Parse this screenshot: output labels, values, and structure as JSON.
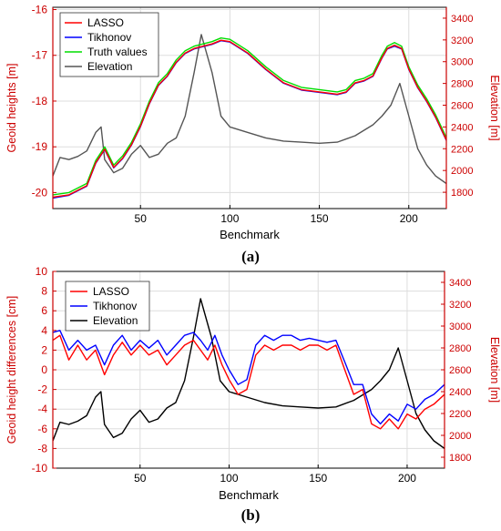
{
  "captions": [
    "(a)",
    "(b)"
  ],
  "colors": {
    "lasso": "#ff0000",
    "tikhonov": "#0000ff",
    "truth": "#00dd00",
    "elevation_a": "#555555",
    "elevation_b": "#000000",
    "axis_red": "#cc0000"
  },
  "chart_data": [
    {
      "type": "line",
      "xlabel": "Benchmark",
      "ylabel": "Geoid heights [m]",
      "y2label": "Elevation [m]",
      "xlim": [
        1,
        221
      ],
      "ylim": [
        -20.35,
        -15.95
      ],
      "y2lim": [
        1650,
        3500
      ],
      "xticks": [
        50,
        100,
        150,
        200
      ],
      "yticks": [
        -20,
        -19,
        -18,
        -17,
        -16
      ],
      "y2ticks": [
        1800,
        2000,
        2200,
        2400,
        2600,
        2800,
        3000,
        3200,
        3400
      ],
      "grid": true,
      "legend_position": "top-left",
      "legend": [
        "LASSO",
        "Tikhonov",
        "Truth values",
        "Elevation"
      ],
      "series": [
        {
          "name": "LASSO",
          "axis": "left",
          "color": "#ff0000",
          "x": [
            1,
            10,
            20,
            25,
            30,
            35,
            40,
            45,
            50,
            55,
            60,
            65,
            70,
            75,
            80,
            85,
            90,
            95,
            100,
            110,
            120,
            130,
            140,
            150,
            160,
            165,
            170,
            175,
            180,
            185,
            188,
            192,
            196,
            200,
            205,
            210,
            215,
            221
          ],
          "y": [
            -20.1,
            -20.05,
            -19.85,
            -19.35,
            -19.05,
            -19.45,
            -19.25,
            -18.95,
            -18.55,
            -18.05,
            -17.65,
            -17.45,
            -17.15,
            -16.95,
            -16.85,
            -16.8,
            -16.75,
            -16.67,
            -16.7,
            -16.95,
            -17.3,
            -17.6,
            -17.75,
            -17.8,
            -17.85,
            -17.8,
            -17.6,
            -17.55,
            -17.45,
            -17.05,
            -16.85,
            -16.78,
            -16.85,
            -17.3,
            -17.7,
            -18.0,
            -18.35,
            -18.85
          ]
        },
        {
          "name": "Tikhonov",
          "axis": "left",
          "color": "#0000ff",
          "x": [
            1,
            10,
            20,
            25,
            30,
            35,
            40,
            45,
            50,
            55,
            60,
            65,
            70,
            75,
            80,
            85,
            90,
            95,
            100,
            110,
            120,
            130,
            140,
            150,
            160,
            165,
            170,
            175,
            180,
            185,
            188,
            192,
            196,
            200,
            205,
            210,
            215,
            221
          ],
          "y": [
            -20.12,
            -20.06,
            -19.86,
            -19.36,
            -19.06,
            -19.46,
            -19.26,
            -18.96,
            -18.56,
            -18.06,
            -17.66,
            -17.46,
            -17.16,
            -16.96,
            -16.86,
            -16.81,
            -16.76,
            -16.68,
            -16.71,
            -16.96,
            -17.31,
            -17.61,
            -17.76,
            -17.81,
            -17.86,
            -17.81,
            -17.61,
            -17.56,
            -17.46,
            -17.06,
            -16.86,
            -16.8,
            -16.86,
            -17.31,
            -17.71,
            -18.01,
            -18.36,
            -18.86
          ]
        },
        {
          "name": "Truth values",
          "axis": "left",
          "color": "#00dd00",
          "x": [
            1,
            10,
            20,
            25,
            30,
            35,
            40,
            45,
            50,
            55,
            60,
            65,
            70,
            75,
            80,
            85,
            90,
            95,
            100,
            110,
            120,
            130,
            140,
            150,
            160,
            165,
            170,
            175,
            180,
            185,
            188,
            192,
            196,
            200,
            205,
            210,
            215,
            221
          ],
          "y": [
            -20.05,
            -20.0,
            -19.8,
            -19.3,
            -19.0,
            -19.4,
            -19.2,
            -18.9,
            -18.5,
            -18.0,
            -17.6,
            -17.4,
            -17.1,
            -16.9,
            -16.8,
            -16.75,
            -16.7,
            -16.62,
            -16.65,
            -16.9,
            -17.25,
            -17.55,
            -17.7,
            -17.75,
            -17.8,
            -17.75,
            -17.55,
            -17.5,
            -17.4,
            -17.0,
            -16.8,
            -16.72,
            -16.8,
            -17.25,
            -17.65,
            -17.95,
            -18.3,
            -18.8
          ]
        },
        {
          "name": "Elevation",
          "axis": "right",
          "color": "#555555",
          "x": [
            1,
            5,
            10,
            15,
            20,
            25,
            28,
            30,
            35,
            40,
            45,
            50,
            55,
            60,
            65,
            70,
            75,
            80,
            84,
            90,
            95,
            100,
            110,
            120,
            130,
            140,
            150,
            160,
            170,
            180,
            185,
            190,
            195,
            200,
            205,
            210,
            215,
            221
          ],
          "y": [
            1950,
            2120,
            2100,
            2130,
            2180,
            2350,
            2400,
            2100,
            1980,
            2020,
            2150,
            2230,
            2120,
            2150,
            2250,
            2300,
            2500,
            2900,
            3250,
            2900,
            2500,
            2400,
            2350,
            2300,
            2270,
            2260,
            2250,
            2260,
            2320,
            2420,
            2500,
            2600,
            2800,
            2500,
            2200,
            2050,
            1950,
            1880
          ]
        }
      ]
    },
    {
      "type": "line",
      "xlabel": "Benchmark",
      "ylabel": "Geoid height differences [cm]",
      "y2label": "Elevation [m]",
      "xlim": [
        1,
        221
      ],
      "ylim": [
        -10,
        10
      ],
      "y2lim": [
        1700,
        3500
      ],
      "xticks": [
        50,
        100,
        150,
        200
      ],
      "yticks": [
        -10,
        -8,
        -6,
        -4,
        -2,
        0,
        2,
        4,
        6,
        8,
        10
      ],
      "y2ticks": [
        1800,
        2000,
        2200,
        2400,
        2600,
        2800,
        3000,
        3200,
        3400
      ],
      "grid": true,
      "legend_position": "top-left",
      "legend": [
        "LASSO",
        "Tikhonov",
        "Elevation"
      ],
      "series": [
        {
          "name": "LASSO",
          "axis": "left",
          "color": "#ff0000",
          "x": [
            1,
            5,
            10,
            15,
            20,
            25,
            30,
            35,
            40,
            45,
            50,
            55,
            60,
            65,
            70,
            75,
            80,
            84,
            88,
            92,
            96,
            100,
            105,
            110,
            115,
            120,
            125,
            130,
            135,
            140,
            145,
            150,
            155,
            160,
            165,
            170,
            175,
            180,
            185,
            190,
            195,
            200,
            205,
            210,
            215,
            221
          ],
          "y": [
            3.0,
            3.5,
            1.0,
            2.5,
            1.0,
            2.0,
            -0.5,
            1.5,
            2.8,
            1.5,
            2.5,
            1.5,
            2.0,
            0.5,
            1.5,
            2.5,
            3.0,
            2.0,
            1.0,
            2.5,
            0.5,
            -1.0,
            -2.5,
            -2.0,
            1.5,
            2.5,
            2.0,
            2.5,
            2.5,
            2.0,
            2.5,
            2.5,
            2.0,
            2.5,
            0.0,
            -2.5,
            -2.0,
            -5.5,
            -6.0,
            -5.0,
            -6.0,
            -4.5,
            -5.0,
            -4.0,
            -3.5,
            -2.5
          ]
        },
        {
          "name": "Tikhonov",
          "axis": "left",
          "color": "#0000ff",
          "x": [
            1,
            5,
            10,
            15,
            20,
            25,
            30,
            35,
            40,
            45,
            50,
            55,
            60,
            65,
            70,
            75,
            80,
            84,
            88,
            92,
            96,
            100,
            105,
            110,
            115,
            120,
            125,
            130,
            135,
            140,
            145,
            150,
            155,
            160,
            165,
            170,
            175,
            180,
            185,
            190,
            195,
            200,
            205,
            210,
            215,
            221
          ],
          "y": [
            3.8,
            4.0,
            2.0,
            3.0,
            2.0,
            2.5,
            0.5,
            2.5,
            3.5,
            2.0,
            3.0,
            2.2,
            3.0,
            1.5,
            2.5,
            3.5,
            3.8,
            3.0,
            2.0,
            3.5,
            1.5,
            0.0,
            -1.5,
            -1.0,
            2.5,
            3.5,
            3.0,
            3.5,
            3.5,
            3.0,
            3.2,
            3.0,
            2.8,
            3.0,
            0.8,
            -1.5,
            -1.5,
            -4.5,
            -5.5,
            -4.5,
            -5.2,
            -3.5,
            -4.0,
            -3.0,
            -2.5,
            -1.5
          ]
        },
        {
          "name": "Elevation",
          "axis": "right",
          "color": "#000000",
          "x": [
            1,
            5,
            10,
            15,
            20,
            25,
            28,
            30,
            35,
            40,
            45,
            50,
            55,
            60,
            65,
            70,
            75,
            80,
            84,
            90,
            95,
            100,
            110,
            120,
            130,
            140,
            150,
            160,
            170,
            180,
            185,
            190,
            195,
            200,
            205,
            210,
            215,
            221
          ],
          "y": [
            1950,
            2120,
            2100,
            2130,
            2180,
            2350,
            2400,
            2100,
            1980,
            2020,
            2150,
            2230,
            2120,
            2150,
            2250,
            2300,
            2500,
            2900,
            3250,
            2900,
            2500,
            2400,
            2350,
            2300,
            2270,
            2260,
            2250,
            2260,
            2320,
            2420,
            2500,
            2600,
            2800,
            2500,
            2200,
            2050,
            1950,
            1880
          ]
        }
      ]
    }
  ]
}
